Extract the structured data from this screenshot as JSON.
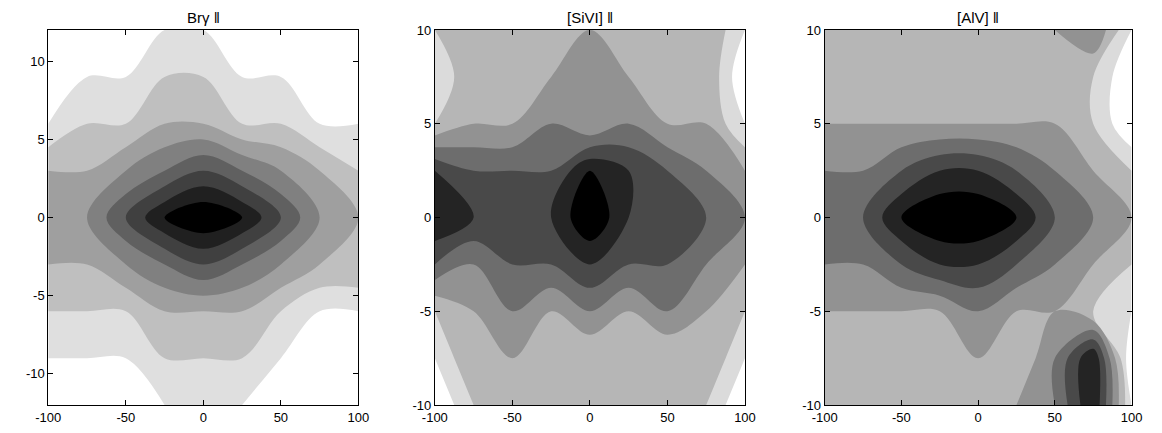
{
  "chart_data": [
    {
      "type": "contour",
      "title": "Brγ ‖",
      "x": [
        -100,
        -75,
        -50,
        -25,
        0,
        25,
        50,
        75,
        100
      ],
      "y": [
        -12,
        -9,
        -6,
        -3,
        0,
        3,
        6,
        9,
        12
      ],
      "z": [
        [
          2,
          1,
          2,
          2,
          3,
          2,
          2,
          1,
          2
        ],
        [
          2,
          2,
          2,
          3,
          3,
          3,
          2,
          2,
          1
        ],
        [
          3,
          3,
          3,
          4,
          4,
          4,
          3,
          2,
          2
        ],
        [
          4,
          4,
          5,
          6,
          7,
          6,
          5,
          4,
          4
        ],
        [
          5,
          5,
          7,
          9,
          10,
          9,
          7,
          5,
          4
        ],
        [
          4,
          4,
          5,
          6,
          7,
          6,
          5,
          4,
          3
        ],
        [
          2,
          3,
          3,
          4,
          4,
          3,
          3,
          2,
          2
        ],
        [
          1,
          2,
          2,
          3,
          3,
          2,
          2,
          1,
          1
        ],
        [
          2,
          1,
          2,
          2,
          2,
          1,
          2,
          1,
          1
        ]
      ],
      "xlim": [
        -100,
        100
      ],
      "ylim": [
        -12,
        12
      ],
      "xticks": [
        -100,
        -50,
        0,
        50,
        100
      ],
      "yticks": [
        -10,
        -5,
        0,
        5,
        10
      ]
    },
    {
      "type": "contour",
      "title": "[SiVI] ‖",
      "x": [
        -100,
        -75,
        -50,
        -25,
        0,
        25,
        50,
        75,
        100
      ],
      "y": [
        -10,
        -7.5,
        -5,
        -2.5,
        0,
        2.5,
        5,
        7.5,
        10
      ],
      "z": [
        [
          1,
          3,
          4,
          3,
          4,
          3,
          4,
          3,
          1
        ],
        [
          2,
          4,
          4,
          4,
          3,
          4,
          3,
          4,
          2
        ],
        [
          3,
          4,
          5,
          4,
          5,
          4,
          5,
          4,
          3
        ],
        [
          6,
          5,
          6,
          6,
          7,
          6,
          6,
          5,
          4
        ],
        [
          8,
          7,
          7,
          7,
          9,
          7,
          7,
          6,
          5
        ],
        [
          7,
          6,
          6,
          6,
          8,
          7,
          6,
          5,
          4
        ],
        [
          3,
          4,
          4,
          5,
          4,
          5,
          4,
          4,
          2
        ],
        [
          2,
          4,
          4,
          4,
          5,
          4,
          4,
          4,
          1
        ],
        [
          3,
          4,
          4,
          3,
          4,
          4,
          3,
          4,
          2
        ]
      ],
      "xlim": [
        -100,
        100
      ],
      "ylim": [
        -10,
        10
      ],
      "xticks": [
        -100,
        -50,
        0,
        50,
        100
      ],
      "yticks": [
        -10,
        -5,
        0,
        5,
        10
      ]
    },
    {
      "type": "contour",
      "title": "[AlV] ‖",
      "x": [
        -100,
        -75,
        -50,
        -25,
        0,
        25,
        50,
        75,
        100
      ],
      "y": [
        -10,
        -7.5,
        -5,
        -2.5,
        0,
        2.5,
        5,
        7.5,
        10
      ],
      "z": [
        [
          4,
          4,
          3,
          4,
          3,
          4,
          5,
          8,
          2
        ],
        [
          3,
          4,
          4,
          3,
          4,
          3,
          5,
          8,
          1
        ],
        [
          4,
          4,
          4,
          4,
          5,
          4,
          4,
          3,
          2
        ],
        [
          5,
          5,
          6,
          7,
          7,
          6,
          5,
          4,
          3
        ],
        [
          6,
          6,
          8,
          9,
          9,
          8,
          6,
          5,
          4
        ],
        [
          5,
          5,
          6,
          7,
          7,
          6,
          5,
          4,
          3
        ],
        [
          4,
          4,
          4,
          4,
          4,
          4,
          4,
          3,
          1
        ],
        [
          4,
          4,
          3,
          4,
          4,
          3,
          4,
          3,
          1
        ],
        [
          3,
          4,
          4,
          3,
          4,
          4,
          4,
          5,
          2
        ]
      ],
      "xlim": [
        -100,
        100
      ],
      "ylim": [
        -10,
        10
      ],
      "xticks": [
        -100,
        -50,
        0,
        50,
        100
      ],
      "yticks": [
        -10,
        -5,
        0,
        5,
        10
      ]
    }
  ]
}
